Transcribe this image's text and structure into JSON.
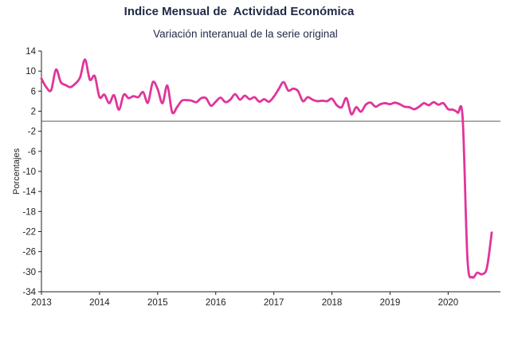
{
  "chart_data": {
    "type": "line",
    "title": "Indice Mensual de  Actividad Económica",
    "subtitle": "Variación interanual de la serie original",
    "xlabel": "",
    "ylabel": "Porcentajes",
    "xlim": [
      2013,
      2020.9
    ],
    "ylim": [
      -34,
      14
    ],
    "y_ticks": [
      14,
      10,
      6,
      2,
      -2,
      -6,
      -10,
      -14,
      -18,
      -22,
      -26,
      -30,
      -34
    ],
    "x_ticks": [
      "2013",
      "2014",
      "2015",
      "2016",
      "2017",
      "2018",
      "2019",
      "2020"
    ],
    "reference_line": 0,
    "grid": false,
    "legend": "none",
    "series": [
      {
        "color": "#e0359a",
        "x": [
          2013.0,
          2013.083,
          2013.167,
          2013.25,
          2013.333,
          2013.417,
          2013.5,
          2013.583,
          2013.667,
          2013.75,
          2013.833,
          2013.917,
          2014.0,
          2014.083,
          2014.167,
          2014.25,
          2014.333,
          2014.417,
          2014.5,
          2014.583,
          2014.667,
          2014.75,
          2014.833,
          2014.917,
          2015.0,
          2015.083,
          2015.167,
          2015.25,
          2015.333,
          2015.417,
          2015.5,
          2015.583,
          2015.667,
          2015.75,
          2015.833,
          2015.917,
          2016.0,
          2016.083,
          2016.167,
          2016.25,
          2016.333,
          2016.417,
          2016.5,
          2016.583,
          2016.667,
          2016.75,
          2016.833,
          2016.917,
          2017.0,
          2017.083,
          2017.167,
          2017.25,
          2017.333,
          2017.417,
          2017.5,
          2017.583,
          2017.667,
          2017.75,
          2017.833,
          2017.917,
          2018.0,
          2018.083,
          2018.167,
          2018.25,
          2018.333,
          2018.417,
          2018.5,
          2018.583,
          2018.667,
          2018.75,
          2018.833,
          2018.917,
          2019.0,
          2019.083,
          2019.167,
          2019.25,
          2019.333,
          2019.417,
          2019.5,
          2019.583,
          2019.667,
          2019.75,
          2019.833,
          2019.917,
          2020.0,
          2020.083,
          2020.167,
          2020.25,
          2020.333,
          2020.417,
          2020.5,
          2020.583,
          2020.667,
          2020.75
        ],
        "values": [
          8.5,
          6.8,
          6.2,
          10.3,
          7.8,
          7.2,
          6.8,
          7.5,
          8.8,
          12.3,
          8.3,
          9.0,
          4.8,
          5.3,
          3.6,
          5.2,
          2.3,
          5.3,
          4.6,
          5.0,
          4.8,
          5.8,
          3.7,
          7.8,
          6.4,
          3.6,
          7.1,
          1.8,
          2.8,
          4.1,
          4.2,
          4.1,
          3.8,
          4.6,
          4.6,
          3.1,
          3.9,
          4.7,
          3.8,
          4.3,
          5.4,
          4.3,
          5.1,
          4.4,
          4.8,
          3.9,
          4.4,
          3.9,
          4.9,
          6.4,
          7.8,
          6.1,
          6.5,
          6.0,
          4.0,
          4.8,
          4.3,
          4.0,
          4.1,
          4.0,
          4.5,
          3.2,
          2.8,
          4.6,
          1.4,
          2.8,
          1.9,
          3.3,
          3.7,
          2.9,
          3.4,
          3.6,
          3.4,
          3.7,
          3.4,
          2.9,
          2.8,
          2.4,
          2.9,
          3.6,
          3.2,
          3.8,
          3.3,
          3.6,
          2.4,
          2.3,
          1.7,
          0.6,
          -27.5,
          -31.1,
          -30.2,
          -30.5,
          -29.2,
          -22.2
        ]
      }
    ]
  }
}
